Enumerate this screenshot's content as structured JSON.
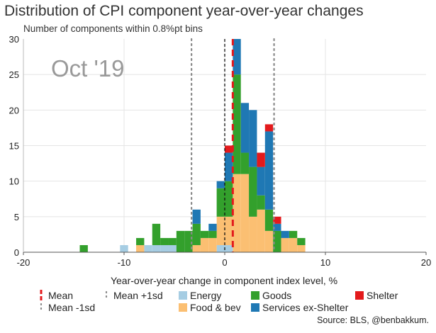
{
  "title": "Distribution of CPI component year-over-year changes",
  "subtitle": "Number of components within 0.8%pt bins",
  "source": "Source: BLS, @benbakkum.",
  "chart_data": {
    "type": "bar",
    "stacked": true,
    "bin_width": 0.8,
    "annotation": "Oct '19",
    "xlabel": "Year-over-year change in component index level, %",
    "ylabel": "",
    "xlim": [
      -20,
      20
    ],
    "ylim": [
      0,
      30
    ],
    "x_ticks": [
      -20,
      -10,
      0,
      10,
      20
    ],
    "y_ticks": [
      0,
      5,
      10,
      15,
      20,
      25,
      30
    ],
    "grid": true,
    "legend_position": "bottom",
    "series": [
      {
        "name": "Energy",
        "color": "#a6cde3",
        "bins": [
          [
            -10.4,
            1
          ],
          [
            -8.0,
            1
          ],
          [
            -7.2,
            1
          ],
          [
            -6.4,
            1
          ],
          [
            -5.6,
            1
          ],
          [
            -0.8,
            1
          ],
          [
            0.0,
            1
          ]
        ]
      },
      {
        "name": "Food & bev",
        "color": "#fbbf72",
        "bins": [
          [
            -8.8,
            1
          ],
          [
            -3.2,
            1
          ],
          [
            -2.4,
            2
          ],
          [
            -1.6,
            2
          ],
          [
            -0.8,
            4
          ],
          [
            0.0,
            4
          ],
          [
            0.8,
            11
          ],
          [
            1.6,
            11
          ],
          [
            2.4,
            5
          ],
          [
            3.2,
            6
          ],
          [
            4.0,
            3
          ],
          [
            5.6,
            2
          ],
          [
            6.4,
            2
          ],
          [
            7.2,
            1
          ]
        ]
      },
      {
        "name": "Goods",
        "color": "#33a02c",
        "bins": [
          [
            -14.4,
            1
          ],
          [
            -8.8,
            1
          ],
          [
            -7.2,
            3
          ],
          [
            -6.4,
            1
          ],
          [
            -5.6,
            1
          ],
          [
            -4.8,
            3
          ],
          [
            -4.0,
            3
          ],
          [
            -3.2,
            3
          ],
          [
            -2.4,
            1
          ],
          [
            -1.6,
            1
          ],
          [
            -0.8,
            4
          ],
          [
            0.0,
            5
          ],
          [
            0.8,
            14
          ],
          [
            1.6,
            3
          ],
          [
            2.4,
            7
          ],
          [
            3.2,
            2
          ],
          [
            4.0,
            3
          ],
          [
            4.8,
            3
          ],
          [
            6.4,
            1
          ],
          [
            7.2,
            1
          ]
        ]
      },
      {
        "name": "Services ex-Shelter",
        "color": "#1f78b4",
        "bins": [
          [
            -3.2,
            2
          ],
          [
            -1.6,
            1
          ],
          [
            -0.8,
            1
          ],
          [
            0.0,
            4
          ],
          [
            0.8,
            5
          ],
          [
            1.6,
            7
          ],
          [
            2.4,
            8
          ],
          [
            3.2,
            4
          ],
          [
            4.0,
            11
          ],
          [
            4.8,
            1
          ],
          [
            5.6,
            1
          ]
        ]
      },
      {
        "name": "Shelter",
        "color": "#e31a1c",
        "bins": [
          [
            0.0,
            1
          ],
          [
            3.2,
            2
          ],
          [
            4.0,
            1
          ],
          [
            4.8,
            1
          ]
        ]
      }
    ],
    "reference_lines": [
      {
        "name": "Mean",
        "x": 0.8,
        "color": "#e31a1c",
        "style": "dashed"
      },
      {
        "name": "Mean +1sd",
        "x": 4.9,
        "color": "#888888",
        "style": "dotted"
      },
      {
        "name": "Mean -1sd",
        "x": -3.3,
        "color": "#888888",
        "style": "dotted"
      },
      {
        "name": "",
        "x": 0.0,
        "color": "#111111",
        "style": "dashed"
      }
    ],
    "legend": [
      {
        "label": "Mean",
        "kind": "line",
        "color": "#e31a1c",
        "style": "dashed"
      },
      {
        "label": "Mean -1sd",
        "kind": "line",
        "color": "#888888",
        "style": "dotted"
      },
      {
        "label": "Mean +1sd",
        "kind": "line",
        "color": "#888888",
        "style": "dotted"
      },
      {
        "label": "Energy",
        "kind": "box",
        "color": "#a6cde3"
      },
      {
        "label": "Food & bev",
        "kind": "box",
        "color": "#fbbf72"
      },
      {
        "label": "Goods",
        "kind": "box",
        "color": "#33a02c"
      },
      {
        "label": "Services ex-Shelter",
        "kind": "box",
        "color": "#1f78b4"
      },
      {
        "label": "Shelter",
        "kind": "box",
        "color": "#e31a1c"
      }
    ]
  }
}
